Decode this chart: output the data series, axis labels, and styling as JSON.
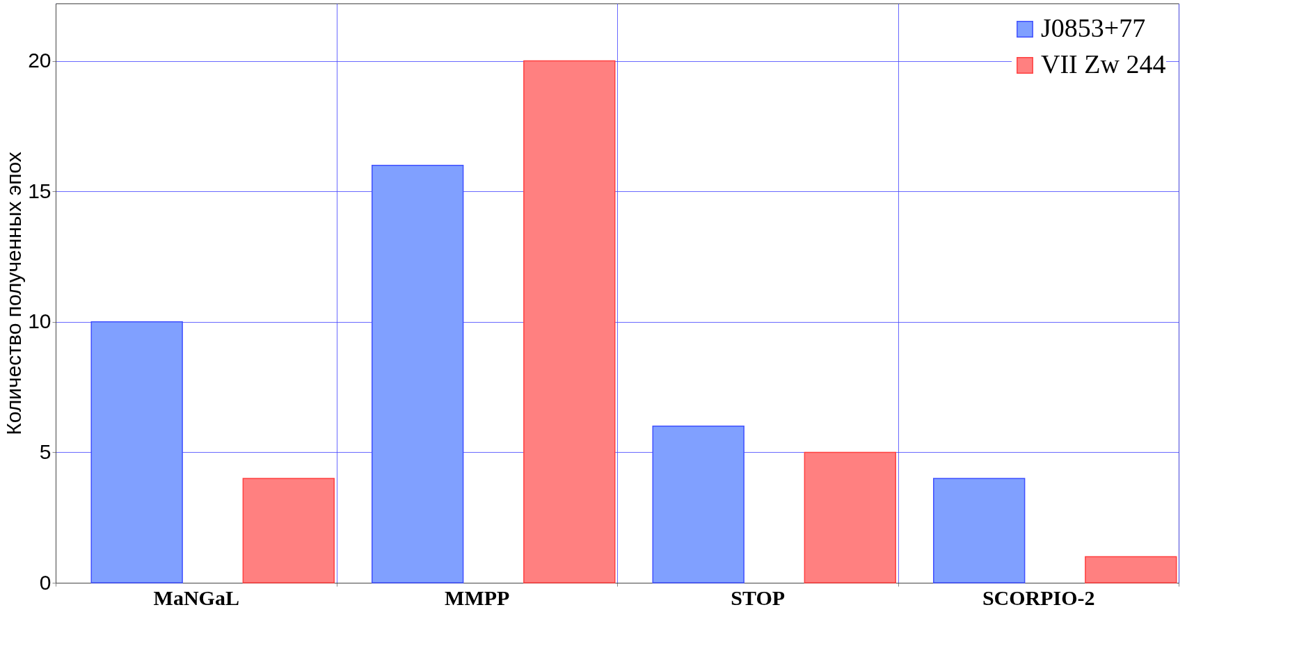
{
  "chart_data": {
    "type": "bar",
    "ylabel": "Количество полученных эпох",
    "categories": [
      "MaNGaL",
      "MMPP",
      "STOP",
      "SCORPIO-2"
    ],
    "series": [
      {
        "name": "J0853+77",
        "color": "#80a0ff",
        "values": [
          10,
          16,
          6,
          4
        ]
      },
      {
        "name": "VII Zw 244",
        "color": "#ff8080",
        "values": [
          4,
          20,
          5,
          1
        ]
      }
    ],
    "ylim": [
      0,
      22.2
    ],
    "yticks": [
      0,
      5,
      10,
      15,
      20
    ],
    "grid": true,
    "legend": "top right"
  }
}
